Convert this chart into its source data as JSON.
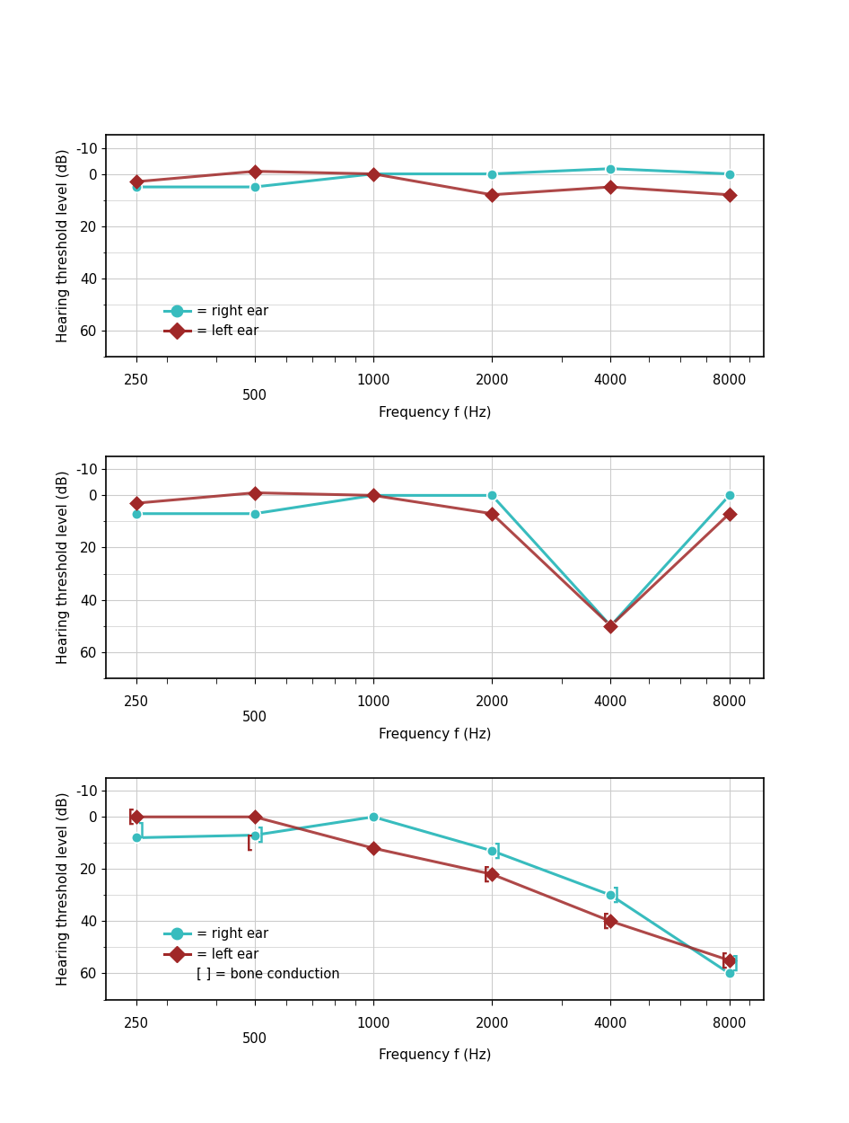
{
  "freqs": [
    250,
    500,
    1000,
    2000,
    4000,
    8000
  ],
  "graph1": {
    "right_ear": [
      5,
      5,
      0,
      0,
      -2,
      0
    ],
    "left_ear": [
      3,
      -1,
      0,
      8,
      5,
      8
    ],
    "legend": true,
    "bone_conduction": false
  },
  "graph2": {
    "right_ear": [
      7,
      7,
      0,
      0,
      50,
      0
    ],
    "left_ear": [
      3,
      -1,
      0,
      7,
      50,
      7
    ],
    "legend": false,
    "bone_conduction": false
  },
  "graph3": {
    "right_ear": [
      8,
      7,
      0,
      13,
      30,
      60
    ],
    "left_ear": [
      0,
      0,
      12,
      22,
      40,
      55
    ],
    "right_bone": [
      5,
      7,
      null,
      13,
      30,
      56
    ],
    "left_bone": [
      0,
      10,
      null,
      22,
      40,
      55
    ],
    "legend": true,
    "bone_conduction": true
  },
  "ylabel": "Hearing threshold level (dB)",
  "xlabel": "Frequency f (Hz)",
  "ylim": [
    70,
    -15
  ],
  "yticks": [
    -10,
    0,
    20,
    40,
    60
  ],
  "xlim_log": [
    210,
    9800
  ],
  "color_right": "#38BCBE",
  "color_left": "#A02828",
  "bg_color": "#FFFFFF",
  "grid_color": "#CCCCCC"
}
